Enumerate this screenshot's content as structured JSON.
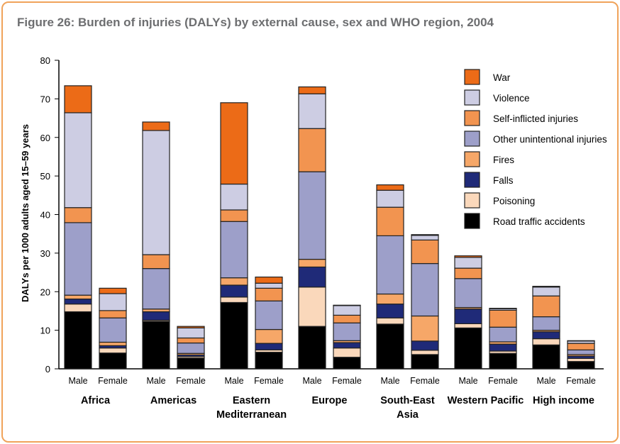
{
  "figure_title": "Figure 26: Burden of injuries (DALYs) by external cause, sex and WHO region, 2004",
  "chart_data": {
    "type": "bar",
    "stacked": true,
    "title": "Figure 26: Burden of injuries (DALYs) by external cause, sex and WHO region, 2004",
    "ylabel": "DALYs per 1000 adults aged 15–59 years",
    "ylim": [
      0,
      80
    ],
    "yticks": [
      0,
      10,
      20,
      30,
      40,
      50,
      60,
      70,
      80
    ],
    "grid": false,
    "legend_position": "top-right",
    "groups": [
      {
        "label": [
          "Africa"
        ]
      },
      {
        "label": [
          "Americas"
        ]
      },
      {
        "label": [
          "Eastern",
          "Mediterranean"
        ]
      },
      {
        "label": [
          "Europe"
        ]
      },
      {
        "label": [
          "South-East",
          "Asia"
        ]
      },
      {
        "label": [
          "Western Pacific"
        ]
      },
      {
        "label": [
          "High income"
        ]
      }
    ],
    "sexes": [
      "Male",
      "Female"
    ],
    "categories": [
      "Africa Male",
      "Africa Female",
      "Americas Male",
      "Americas Female",
      "Eastern Mediterranean Male",
      "Eastern Mediterranean Female",
      "Europe Male",
      "Europe Female",
      "South-East Asia Male",
      "South-East Asia Female",
      "Western Pacific Male",
      "Western Pacific Female",
      "High income Male",
      "High income Female"
    ],
    "series": [
      {
        "name": "Road traffic accidents",
        "color": "#000000",
        "values": [
          14.8,
          4.1,
          12.3,
          2.8,
          17.2,
          4.3,
          11.0,
          3.0,
          11.6,
          3.7,
          10.6,
          4.0,
          6.2,
          1.9
        ]
      },
      {
        "name": "Poisoning",
        "color": "#fad8bb",
        "values": [
          2.0,
          1.3,
          0.3,
          0.4,
          1.4,
          0.6,
          10.2,
          2.4,
          1.6,
          1.1,
          1.1,
          0.6,
          1.6,
          0.8
        ]
      },
      {
        "name": "Falls",
        "color": "#1f2a78",
        "values": [
          1.3,
          0.6,
          2.2,
          0.4,
          3.1,
          1.7,
          5.2,
          1.4,
          3.6,
          2.4,
          3.8,
          1.8,
          1.8,
          0.6
        ]
      },
      {
        "name": "Fires",
        "color": "#f6a768",
        "values": [
          1.0,
          0.9,
          0.7,
          0.4,
          1.9,
          3.6,
          2.0,
          0.5,
          2.6,
          6.5,
          0.4,
          0.6,
          0.4,
          0.4
        ]
      },
      {
        "name": "Other unintentional injuries",
        "color": "#9d9fc9",
        "values": [
          18.8,
          6.3,
          10.5,
          2.7,
          14.6,
          7.4,
          22.7,
          4.6,
          15.1,
          13.6,
          7.5,
          3.8,
          3.5,
          1.2
        ]
      },
      {
        "name": "Self-inflicted injuries",
        "color": "#f29450",
        "values": [
          3.9,
          1.9,
          3.6,
          1.3,
          3.0,
          3.3,
          11.2,
          2.0,
          7.4,
          6.1,
          2.7,
          4.4,
          5.4,
          1.7
        ]
      },
      {
        "name": "Violence",
        "color": "#cdcde3",
        "values": [
          24.6,
          4.4,
          32.2,
          2.6,
          6.7,
          1.3,
          9.0,
          2.5,
          4.4,
          1.2,
          2.8,
          0.4,
          2.3,
          0.6
        ]
      },
      {
        "name": "War",
        "color": "#ec6b17",
        "values": [
          7.0,
          1.4,
          2.2,
          0.4,
          21.1,
          1.6,
          1.8,
          0.1,
          1.4,
          0.2,
          0.4,
          0.1,
          0.2,
          0.1
        ]
      }
    ]
  }
}
